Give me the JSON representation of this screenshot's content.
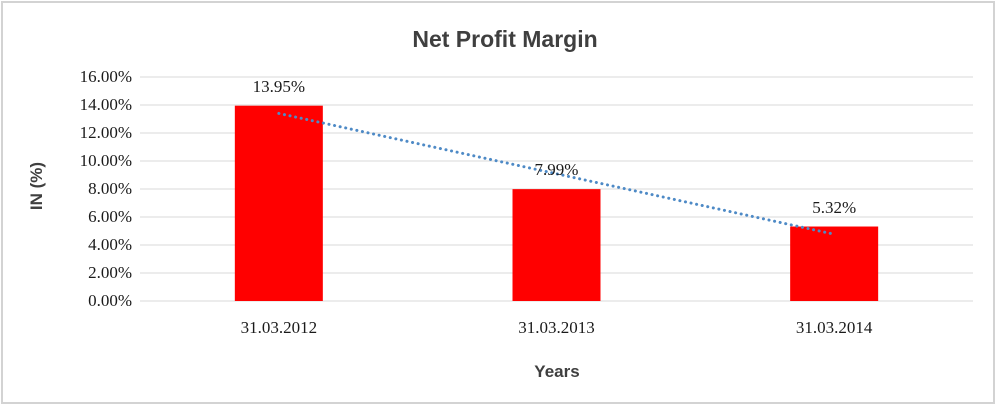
{
  "chart_data": {
    "type": "bar",
    "title": "Net Profit Margin",
    "xlabel": "Years",
    "ylabel": "IN (%)",
    "categories": [
      "31.03.2012",
      "31.03.2013",
      "31.03.2014"
    ],
    "values": [
      13.95,
      7.99,
      5.32
    ],
    "data_labels": [
      "13.95%",
      "7.99%",
      "5.32%"
    ],
    "ylim": [
      0,
      16
    ],
    "ytick_step": 2,
    "ytick_labels": [
      "0.00%",
      "2.00%",
      "4.00%",
      "6.00%",
      "8.00%",
      "10.00%",
      "12.00%",
      "14.00%",
      "16.00%"
    ],
    "grid": true,
    "legend": "none",
    "bar_color": "#ff0000",
    "gridline_color": "#d9d9d9",
    "trendline": {
      "type": "linear",
      "style": "dotted",
      "color": "#4e8ac6",
      "start_value": 13.4,
      "end_value": 4.77
    }
  }
}
